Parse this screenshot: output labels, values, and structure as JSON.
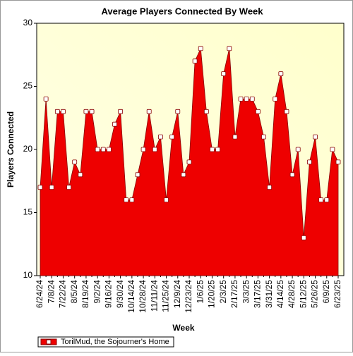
{
  "chart_data": {
    "type": "area",
    "title": "Average Players Connected By Week",
    "xlabel": "Week",
    "ylabel": "Players Connected",
    "categories": [
      "6/24/24",
      null,
      "7/8/24",
      null,
      "7/22/24",
      null,
      "8/5/24",
      null,
      "8/19/24",
      null,
      "9/2/24",
      null,
      "9/16/24",
      null,
      "9/30/24",
      null,
      "10/14/24",
      null,
      "10/28/24",
      null,
      "11/11/24",
      null,
      "11/25/24",
      null,
      "12/9/24",
      null,
      "12/23/24",
      null,
      "1/6/25",
      null,
      "1/20/25",
      null,
      "2/3/25",
      null,
      "2/17/25",
      null,
      "3/3/25",
      null,
      "3/17/25",
      null,
      "3/31/25",
      null,
      "4/14/25",
      null,
      "4/28/25",
      null,
      "5/12/25",
      null,
      "5/26/25",
      null,
      "6/9/25",
      null,
      "6/23/25"
    ],
    "series": [
      {
        "name": "TorilMud, the Sojourner's Home",
        "color": "#ee0000",
        "values": [
          17,
          24,
          17,
          23,
          23,
          17,
          19,
          18,
          23,
          23,
          20,
          20,
          20,
          22,
          23,
          16,
          16,
          18,
          20,
          23,
          20,
          21,
          16,
          21,
          23,
          18,
          19,
          27,
          28,
          23,
          20,
          20,
          26,
          28,
          21,
          24,
          24,
          24,
          23,
          21,
          17,
          24,
          26,
          23,
          18,
          20,
          13,
          19,
          21,
          16,
          16,
          20,
          19
        ]
      }
    ],
    "ylim": [
      10,
      30
    ],
    "yticks": [
      10,
      15,
      20,
      25,
      30
    ],
    "legend": "bottom-left"
  }
}
